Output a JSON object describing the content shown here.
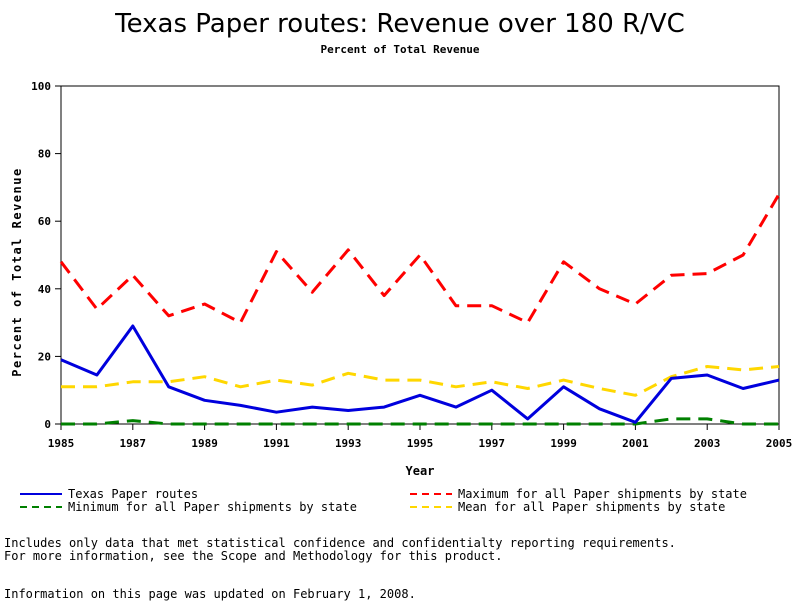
{
  "chart_data": {
    "type": "line",
    "title": "Texas Paper routes: Revenue over 180 R/VC",
    "subtitle": "Percent of Total Revenue",
    "xlabel": "Year",
    "ylabel": "Percent of Total Revenue",
    "xlim": [
      1985,
      2005
    ],
    "ylim": [
      0,
      100
    ],
    "x_ticks": [
      "1985",
      "1987",
      "1989",
      "1991",
      "1993",
      "1995",
      "1997",
      "1999",
      "2001",
      "2003",
      "2005"
    ],
    "y_ticks": [
      "0",
      "20",
      "40",
      "60",
      "80",
      "100"
    ],
    "grid": false,
    "legend_position": "bottom",
    "x": [
      1985,
      1986,
      1987,
      1988,
      1989,
      1990,
      1991,
      1992,
      1993,
      1994,
      1995,
      1996,
      1997,
      1998,
      1999,
      2000,
      2001,
      2002,
      2003,
      2004,
      2005
    ],
    "series": [
      {
        "name": "Texas Paper routes",
        "color": "#0000dd",
        "dash": "solid",
        "values": [
          19,
          14.5,
          29,
          11,
          7,
          5.5,
          3.5,
          5,
          4,
          5,
          8.5,
          5,
          10,
          1.5,
          11,
          4.5,
          0.5,
          13.5,
          14.5,
          10.5,
          13
        ]
      },
      {
        "name": "Maximum for all Paper shipments by state",
        "color": "#ff0000",
        "dash": "dashed",
        "values": [
          48,
          34,
          44,
          32,
          35.5,
          30,
          51,
          39,
          51.5,
          38,
          50,
          35,
          35,
          30,
          48,
          40,
          35.5,
          44,
          44.5,
          50,
          68
        ]
      },
      {
        "name": "Minimum for all Paper shipments by state",
        "color": "#008000",
        "dash": "dashed",
        "values": [
          0,
          0,
          1,
          0,
          0,
          0,
          0,
          0,
          0,
          0,
          0,
          0,
          0,
          0,
          0,
          0,
          0,
          1.5,
          1.5,
          0,
          0
        ]
      },
      {
        "name": "Mean for all Paper shipments by state",
        "color": "#ffd700",
        "dash": "dashed",
        "values": [
          11,
          11,
          12.5,
          12.5,
          14,
          11,
          13,
          11.5,
          15,
          13,
          13,
          11,
          12.5,
          10.5,
          13,
          10.5,
          8.5,
          14,
          17,
          16,
          17
        ]
      }
    ]
  },
  "notes": {
    "line1": "Includes only data that met statistical confidence and confidentialty reporting requirements.",
    "line2": "For more information, see the Scope and Methodology for this product.",
    "line3": "Information on this page was updated on February 1, 2008."
  }
}
